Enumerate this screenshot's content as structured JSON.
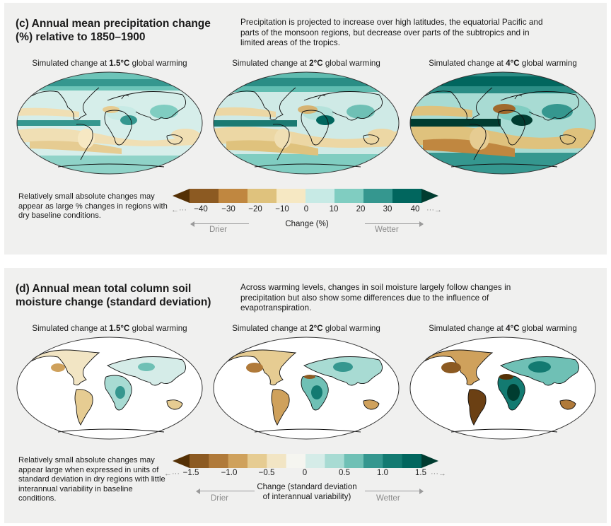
{
  "panel_c": {
    "title": "(c) Annual mean precipitation change (%) relative to 1850–1900",
    "description": "Precipitation is projected to increase over high latitudes, the equatorial Pacific and parts of the monsoon regions, but decrease over parts of the subtropics and in limited areas of the tropics.",
    "maps": [
      {
        "prefix": "Simulated change at ",
        "level": "1.5°C",
        "suffix": " global warming"
      },
      {
        "prefix": "Simulated change at ",
        "level": "2°C",
        "suffix": " global warming"
      },
      {
        "prefix": "Simulated change at ",
        "level": "4°C",
        "suffix": " global warming"
      }
    ],
    "note": "Relatively small absolute changes may appear as large % changes in regions with dry baseline conditions.",
    "colorbar": {
      "ticks": [
        "−40",
        "−30",
        "−20",
        "−10",
        "0",
        "10",
        "20",
        "30",
        "40"
      ],
      "colors": [
        "#543005",
        "#8c5a22",
        "#c08740",
        "#dfc27d",
        "#f6e8c3",
        "#c7eae5",
        "#80cdc1",
        "#35978f",
        "#01665e",
        "#003c30"
      ],
      "label": "Change (%)",
      "left_dots": "←···",
      "right_dots": "···→",
      "drier": "Drier",
      "wetter": "Wetter"
    }
  },
  "panel_d": {
    "title": "(d) Annual mean total column soil moisture change (standard deviation)",
    "description": "Across warming levels, changes in soil moisture largely follow changes in precipitation but also show some differences due to the influence of evapotranspiration.",
    "maps": [
      {
        "prefix": "Simulated change at ",
        "level": "1.5°C",
        "suffix": " global warming"
      },
      {
        "prefix": "Simulated change at ",
        "level": "2°C",
        "suffix": " global warming"
      },
      {
        "prefix": "Simulated change at ",
        "level": "4°C",
        "suffix": " global warming"
      }
    ],
    "note": "Relatively small absolute changes may appear large when expressed in units of standard deviation in dry regions with little interannual variability in baseline conditions.",
    "colorbar": {
      "ticks": [
        "−1.5",
        "−1.0",
        "−0.5",
        "0",
        "0.5",
        "1.0",
        "1.5"
      ],
      "colors": [
        "#543005",
        "#8c5a22",
        "#b07a3a",
        "#cfa15c",
        "#e6cc92",
        "#f2e5c4",
        "#f5f5f0",
        "#d5ece8",
        "#a8dbd3",
        "#6fc0b5",
        "#35978f",
        "#137a71",
        "#01665e",
        "#003c30"
      ],
      "label_line1": "Change (standard deviation",
      "label_line2": "of interannual variability)",
      "left_dots": "←···",
      "right_dots": "···→",
      "drier": "Drier",
      "wetter": "Wetter"
    }
  }
}
